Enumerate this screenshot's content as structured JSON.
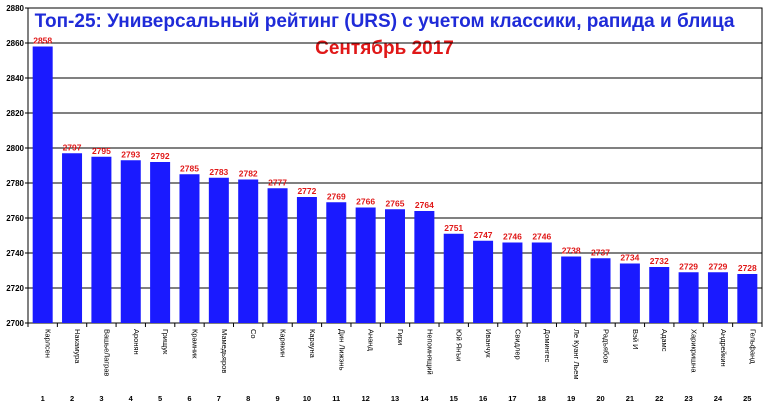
{
  "chart_data": {
    "type": "bar",
    "title": "Топ-25: Универсальный рейтинг (URS) с учетом классики, рапида и блица",
    "subtitle": "Сентябрь 2017",
    "categories": [
      "Карлсен",
      "Накамура",
      "ВашьеЛаграв",
      "Аронян",
      "Грищук",
      "Крамник",
      "Мамедьяров",
      "Со",
      "Карякин",
      "Карауна",
      "Дин Лижэнь",
      "Ананд",
      "Гири",
      "Непомнящий",
      "Юй Янъи",
      "Иванчук",
      "Свидлер",
      "Домингес",
      "Ле Куанг Льем",
      "Радъябов",
      "Вэй И",
      "Адамс",
      "Харикришна",
      "Андрейкин",
      "Гельфанд"
    ],
    "ranks": [
      "1",
      "2",
      "3",
      "4",
      "5",
      "6",
      "7",
      "8",
      "9",
      "10",
      "11",
      "12",
      "13",
      "14",
      "15",
      "16",
      "17",
      "18",
      "19",
      "20",
      "21",
      "22",
      "23",
      "24",
      "25"
    ],
    "values": [
      2858,
      2797,
      2795,
      2793,
      2792,
      2785,
      2783,
      2782,
      2777,
      2772,
      2769,
      2766,
      2765,
      2764,
      2751,
      2747,
      2746,
      2746,
      2738,
      2737,
      2734,
      2732,
      2729,
      2729,
      2728
    ],
    "ylim": [
      2700,
      2880
    ],
    "yticks": [
      2700,
      2720,
      2740,
      2760,
      2780,
      2800,
      2820,
      2840,
      2860,
      2880
    ],
    "grid": true,
    "colors": {
      "bar": "#1a1aff",
      "value_label": "#e01818",
      "title": "#1f2bd8",
      "subtitle": "#e01818"
    }
  }
}
